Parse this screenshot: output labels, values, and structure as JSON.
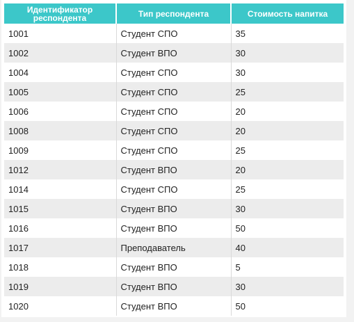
{
  "table": {
    "headers": [
      "Идентификатор респондента",
      "Тип респондента",
      "Стоимость напитка"
    ],
    "rows": [
      [
        "1001",
        "Студент СПО",
        "35"
      ],
      [
        "1002",
        "Студент ВПО",
        "30"
      ],
      [
        "1004",
        "Студент СПО",
        "30"
      ],
      [
        "1005",
        "Студент СПО",
        "25"
      ],
      [
        "1006",
        "Студент СПО",
        "20"
      ],
      [
        "1008",
        "Студент СПО",
        "20"
      ],
      [
        "1009",
        "Студент СПО",
        "25"
      ],
      [
        "1012",
        "Студент ВПО",
        "20"
      ],
      [
        "1014",
        "Студент СПО",
        "25"
      ],
      [
        "1015",
        "Студент ВПО",
        "30"
      ],
      [
        "1016",
        "Студент ВПО",
        "50"
      ],
      [
        "1017",
        "Преподаватель",
        "40"
      ],
      [
        "1018",
        "Студент ВПО",
        "5"
      ],
      [
        "1019",
        "Студент ВПО",
        "30"
      ],
      [
        "1020",
        "Студент ВПО",
        "50"
      ]
    ]
  },
  "colors": {
    "header_bg": "#3cc7c9",
    "header_text": "#ffffff",
    "row_alt_bg": "#ececec",
    "row_bg": "#ffffff",
    "page_bg": "#f2f2f2"
  }
}
